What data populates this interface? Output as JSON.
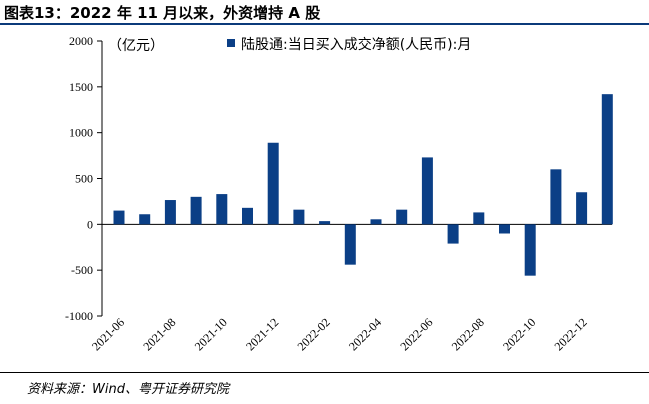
{
  "header": {
    "title": "图表13：2022 年 11 月以来，外资增持 A 股"
  },
  "footer": {
    "source": "资料来源：Wind、粤开证券研究院"
  },
  "chart_data": {
    "type": "bar",
    "unit_label": "（亿元）",
    "ylim": [
      -1000,
      2000
    ],
    "yticks": [
      -1000,
      -500,
      0,
      500,
      1000,
      1500,
      2000
    ],
    "grid": false,
    "legend_position": "top",
    "bar_color": "#0b3f86",
    "categories": [
      "2021-06",
      "2021-07",
      "2021-08",
      "2021-09",
      "2021-10",
      "2021-11",
      "2021-12",
      "2022-01",
      "2022-02",
      "2022-03",
      "2022-04",
      "2022-05",
      "2022-06",
      "2022-07",
      "2022-08",
      "2022-09",
      "2022-10",
      "2022-11",
      "2022-12",
      "2023-01"
    ],
    "xtick_labels": [
      "2021-06",
      "2021-08",
      "2021-10",
      "2021-12",
      "2022-02",
      "2022-04",
      "2022-06",
      "2022-08",
      "2022-10",
      "2022-12"
    ],
    "series": [
      {
        "name": "陆股通:当日买入成交净额(人民币):月",
        "values": [
          150,
          110,
          265,
          300,
          330,
          180,
          890,
          160,
          35,
          -440,
          55,
          160,
          730,
          -210,
          130,
          -100,
          -560,
          600,
          350,
          1420
        ]
      }
    ]
  }
}
